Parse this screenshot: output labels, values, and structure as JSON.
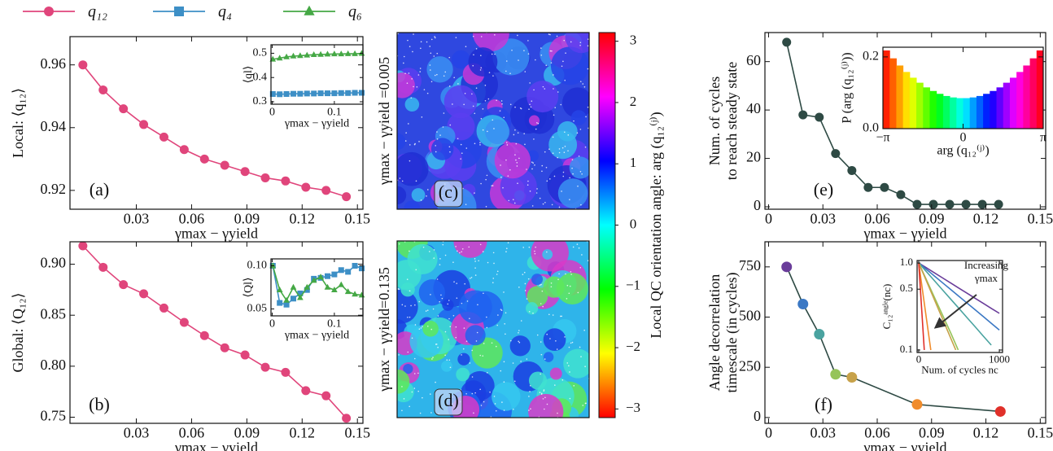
{
  "chart_data": [
    {
      "type": "line",
      "label": "(a)",
      "ylabel": "Local: ⟨q₁₂⟩",
      "xlabel": "γmax − γyield",
      "x": [
        0.001,
        0.012,
        0.023,
        0.034,
        0.045,
        0.056,
        0.067,
        0.078,
        0.089,
        0.1,
        0.111,
        0.122,
        0.133,
        0.144
      ],
      "series": [
        {
          "name": "q₁₂",
          "color": "#e0457b",
          "marker": "circle",
          "values": [
            0.96,
            0.952,
            0.946,
            0.941,
            0.937,
            0.933,
            0.93,
            0.928,
            0.926,
            0.924,
            0.923,
            0.921,
            0.92,
            0.918
          ]
        }
      ],
      "xlim": [
        -0.006,
        0.153
      ],
      "ylim": [
        0.914,
        0.969
      ],
      "xticks": [
        0.03,
        0.06,
        0.09,
        0.12,
        0.15
      ],
      "yticks": [
        0.92,
        0.94,
        0.96
      ]
    },
    {
      "type": "line",
      "ylabel": "⟨ql⟩",
      "xlabel": "γmax − γyield",
      "x": [
        0.001,
        0.012,
        0.023,
        0.034,
        0.045,
        0.056,
        0.067,
        0.078,
        0.089,
        0.1,
        0.111,
        0.122,
        0.133,
        0.144
      ],
      "series": [
        {
          "name": "q₄",
          "color": "#3d8fc6",
          "marker": "square",
          "values": [
            0.332,
            0.331,
            0.332,
            0.333,
            0.333,
            0.334,
            0.334,
            0.335,
            0.335,
            0.335,
            0.336,
            0.336,
            0.337,
            0.337
          ]
        },
        {
          "name": "q₆",
          "color": "#45a845",
          "marker": "triangle",
          "values": [
            0.475,
            0.48,
            0.485,
            0.488,
            0.49,
            0.492,
            0.494,
            0.495,
            0.496,
            0.497,
            0.497,
            0.498,
            0.498,
            0.499
          ]
        }
      ],
      "xlim": [
        -0.002,
        0.146
      ],
      "ylim": [
        0.29,
        0.535
      ],
      "xticks": [
        0,
        0.1
      ],
      "yticks": [
        0.3,
        0.4,
        0.5
      ]
    },
    {
      "type": "line",
      "label": "(b)",
      "ylabel": "Global: ⟨Q₁₂⟩",
      "xlabel": "γmax − γyield",
      "x": [
        0.001,
        0.012,
        0.023,
        0.034,
        0.045,
        0.056,
        0.067,
        0.078,
        0.089,
        0.1,
        0.111,
        0.122,
        0.133,
        0.144
      ],
      "series": [
        {
          "color": "#e0457b",
          "marker": "circle",
          "values": [
            0.918,
            0.897,
            0.88,
            0.871,
            0.857,
            0.843,
            0.83,
            0.818,
            0.811,
            0.799,
            0.794,
            0.776,
            0.771,
            0.749
          ]
        }
      ],
      "xlim": [
        -0.006,
        0.153
      ],
      "ylim": [
        0.744,
        0.922
      ],
      "xticks": [
        0.03,
        0.06,
        0.09,
        0.12,
        0.15
      ],
      "yticks": [
        0.75,
        {
          "value": 0.8,
          "label": "0.80"
        },
        0.85,
        {
          "value": 0.9,
          "label": "0.90"
        }
      ]
    },
    {
      "type": "line",
      "ylabel": "⟨Ql⟩",
      "xlabel": "γmax − γyield",
      "x": [
        0.001,
        0.012,
        0.023,
        0.034,
        0.045,
        0.056,
        0.067,
        0.078,
        0.089,
        0.1,
        0.111,
        0.122,
        0.133,
        0.144
      ],
      "series": [
        {
          "color": "#3d8fc6",
          "marker": "square",
          "values": [
            0.1,
            0.057,
            0.055,
            0.062,
            0.068,
            0.072,
            0.085,
            0.086,
            0.088,
            0.09,
            0.095,
            0.093,
            0.1,
            0.097
          ]
        },
        {
          "color": "#45a845",
          "marker": "triangle",
          "values": [
            0.1,
            0.072,
            0.06,
            0.075,
            0.063,
            0.075,
            0.083,
            0.087,
            0.075,
            0.072,
            0.078,
            0.07,
            0.067,
            0.066
          ]
        }
      ],
      "xlim": [
        -0.002,
        0.146
      ],
      "ylim": [
        0.042,
        0.108
      ],
      "xticks": [
        0,
        0.1
      ],
      "yticks": [
        0.05,
        {
          "value": 0.1,
          "label": "0.10"
        }
      ]
    },
    {
      "type": "image",
      "label": "(c)",
      "ylabel": "γmax − γyield =0.005"
    },
    {
      "type": "image",
      "label": "(d)",
      "ylabel": "γmax − γyield=0.135"
    },
    {
      "type": "colorbar",
      "colormap": "hsv",
      "label": "Local QC orientation angle: arg (q₁₂⁽ʲ⁾)",
      "ylim": [
        -3.1416,
        3.1416
      ],
      "yticks": [
        {
          "value": -3,
          "label": "−3"
        },
        {
          "value": -2,
          "label": "−2"
        },
        {
          "value": -1,
          "label": "−1"
        },
        0,
        1,
        2,
        3
      ]
    },
    {
      "type": "line",
      "label": "(e)",
      "ylabel": [
        "Num. of cycles",
        "to reach steady state"
      ],
      "xlabel": "γmax − γyield",
      "x": [
        0.01,
        0.019,
        0.028,
        0.037,
        0.046,
        0.055,
        0.064,
        0.073,
        0.082,
        0.091,
        0.1,
        0.109,
        0.118,
        0.127
      ],
      "series": [
        {
          "color": "#2e4a44",
          "marker": "circle",
          "values": [
            68,
            38,
            37,
            22,
            15,
            8,
            8,
            5,
            1,
            1,
            1,
            1,
            1,
            1
          ]
        }
      ],
      "xlim": [
        -0.002,
        0.153
      ],
      "ylim": [
        -1,
        72
      ],
      "xticks": [
        0,
        0.03,
        0.06,
        0.09,
        0.12,
        0.15
      ],
      "yticks": [
        0,
        20,
        40,
        60
      ]
    },
    {
      "type": "histogram",
      "colormap": "hsv",
      "ylabel": "P (arg (q₁₂⁽ʲ⁾))",
      "xlabel": "arg (q₁₂⁽ʲ⁾)",
      "bins": [
        -3.142,
        -2.88,
        -2.618,
        -2.356,
        -2.094,
        -1.833,
        -1.571,
        -1.309,
        -1.047,
        -0.785,
        -0.524,
        -0.262,
        0,
        0.262,
        0.524,
        0.785,
        1.047,
        1.309,
        1.571,
        1.833,
        2.094,
        2.356,
        2.618,
        2.88,
        3.142
      ],
      "values": [
        0.218,
        0.196,
        0.176,
        0.158,
        0.142,
        0.128,
        0.115,
        0.105,
        0.097,
        0.091,
        0.087,
        0.085,
        0.085,
        0.087,
        0.091,
        0.097,
        0.105,
        0.115,
        0.128,
        0.142,
        0.158,
        0.176,
        0.196,
        0.218
      ],
      "xlim": [
        -3.142,
        3.142
      ],
      "ylim": [
        0,
        0.227
      ],
      "xticks": [
        {
          "value": -3.142,
          "label": "−π"
        },
        0,
        {
          "value": 3.142,
          "label": "π"
        }
      ],
      "yticks": [
        {
          "value": 0,
          "label": "0.0"
        },
        {
          "value": 0.2,
          "label": "0.2"
        }
      ]
    },
    {
      "type": "line",
      "label": "(f)",
      "ylabel": [
        "Angle decorrelation",
        "timescale (in cycles)"
      ],
      "xlabel": "γmax − γyield",
      "x": [
        0.01,
        0.019,
        0.028,
        0.037,
        0.046,
        0.082,
        0.128
      ],
      "series": [
        {
          "color": "#2e4a44",
          "marker": "circle",
          "marker_colors": [
            "#6a3d9a",
            "#3b78c4",
            "#4aa3a0",
            "#96c45a",
            "#c7a24a",
            "#f08c2c",
            "#e0302a"
          ],
          "values": [
            750,
            565,
            415,
            215,
            200,
            65,
            30
          ]
        }
      ],
      "xlim": [
        -0.002,
        0.153
      ],
      "ylim": [
        -29,
        875
      ],
      "xticks": [
        0,
        0.03,
        0.06,
        0.09,
        0.12,
        0.15
      ],
      "yticks": [
        0,
        250,
        500,
        750
      ]
    },
    {
      "type": "line",
      "log_y": true,
      "ylabel": "C₁₂ᵃⁿᵍˡᵉ(nc)",
      "xlabel": "Num. of cycles nc",
      "annotation": [
        "Increasing",
        "γmax"
      ],
      "series": [
        {
          "color": "#6a3d9a",
          "x": [
            0,
            100,
            200,
            300,
            400,
            500,
            600,
            700,
            800,
            900,
            1000
          ],
          "values": [
            1,
            0.875,
            0.766,
            0.67,
            0.587,
            0.513,
            0.449,
            0.393,
            0.344,
            0.301,
            0.264
          ]
        },
        {
          "color": "#3b78c4",
          "x": [
            0,
            100,
            200,
            300,
            400,
            500,
            600,
            700,
            800,
            900,
            1000
          ],
          "values": [
            1,
            0.838,
            0.702,
            0.588,
            0.493,
            0.413,
            0.346,
            0.29,
            0.243,
            0.203,
            0.17
          ]
        },
        {
          "color": "#4aa3a0",
          "x": [
            0,
            100,
            200,
            300,
            400,
            500,
            600,
            700,
            800,
            900
          ],
          "values": [
            1,
            0.786,
            0.618,
            0.485,
            0.381,
            0.3,
            0.235,
            0.185,
            0.145,
            0.114
          ]
        },
        {
          "color": "#96c45a",
          "x": [
            0,
            100,
            200,
            300,
            400,
            490
          ],
          "values": [
            1,
            0.628,
            0.394,
            0.247,
            0.155,
            0.1
          ]
        },
        {
          "color": "#c7a24a",
          "x": [
            0,
            100,
            200,
            300,
            400,
            460
          ],
          "values": [
            1,
            0.607,
            0.368,
            0.223,
            0.135,
            0.1
          ]
        },
        {
          "color": "#f08c2c",
          "x": [
            0,
            50,
            100,
            150
          ],
          "values": [
            1,
            0.463,
            0.215,
            0.1
          ]
        },
        {
          "color": "#e0302a",
          "x": [
            0,
            25,
            50,
            69
          ],
          "values": [
            1,
            0.435,
            0.189,
            0.1
          ]
        }
      ],
      "xlim": [
        -20,
        1040
      ],
      "ylim": [
        0.0937,
        1.067
      ],
      "xticks": [
        0,
        1000
      ],
      "yticks": [
        0.1,
        0.5,
        {
          "value": 1,
          "label": "1.0"
        }
      ]
    }
  ]
}
